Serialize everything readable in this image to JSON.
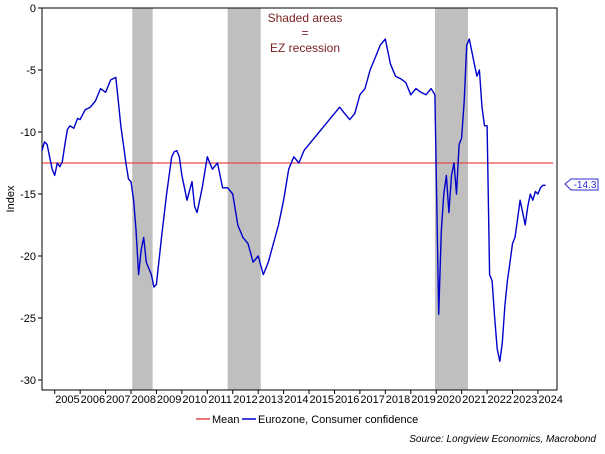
{
  "chart_data": {
    "type": "line",
    "title": "",
    "xlabel": "",
    "ylabel": "Index",
    "ylim": [
      -30,
      0
    ],
    "xlim": [
      2004.5,
      2024.75
    ],
    "yticks": [
      0,
      -5,
      -10,
      -15,
      -20,
      -25,
      -30
    ],
    "yticklabels": [
      "0",
      "-5",
      "-10",
      "-15",
      "-20",
      "-25",
      "-30"
    ],
    "xticks": [
      "2005",
      "2006",
      "2007",
      "2008",
      "2009",
      "2010",
      "2011",
      "2012",
      "2013",
      "2014",
      "2015",
      "2016",
      "2017",
      "2018",
      "2019",
      "2020",
      "2021",
      "2022",
      "2023",
      "2024"
    ],
    "annotation_lines": [
      "Shaded areas",
      "=",
      "EZ recession"
    ],
    "last_value_label": "-14.3",
    "source": "Source: Longview Economics, Macrobond",
    "colors": {
      "series": "#0000cc",
      "mean": "#e84a4a",
      "shade": "#bfbfbf",
      "annotation": "#7a1f1f"
    },
    "recessions": [
      {
        "start": 2008.05,
        "end": 2008.85
      },
      {
        "start": 2011.8,
        "end": 2013.1
      },
      {
        "start": 2019.95,
        "end": 2021.25
      }
    ],
    "legend": [
      {
        "name": "Mean",
        "color": "#e84a4a"
      },
      {
        "name": "Eurozone, Consumer confidence",
        "color": "#0000cc"
      }
    ],
    "series": [
      {
        "name": "Mean",
        "x": [
          2004.5,
          2024.6
        ],
        "values": [
          -12.5,
          -12.5
        ]
      },
      {
        "name": "Eurozone, Consumer confidence",
        "x": [
          2004.5,
          2004.6,
          2004.7,
          2004.8,
          2004.9,
          2005.0,
          2005.1,
          2005.2,
          2005.3,
          2005.4,
          2005.5,
          2005.6,
          2005.75,
          2005.9,
          2006.0,
          2006.2,
          2006.4,
          2006.6,
          2006.8,
          2007.0,
          2007.2,
          2007.4,
          2007.5,
          2007.6,
          2007.7,
          2007.8,
          2007.9,
          2008.0,
          2008.1,
          2008.2,
          2008.3,
          2008.4,
          2008.5,
          2008.6,
          2008.7,
          2008.8,
          2008.9,
          2009.0,
          2009.2,
          2009.4,
          2009.6,
          2009.7,
          2009.8,
          2009.9,
          2010.0,
          2010.2,
          2010.4,
          2010.5,
          2010.6,
          2010.8,
          2011.0,
          2011.2,
          2011.4,
          2011.6,
          2011.8,
          2012.0,
          2012.2,
          2012.4,
          2012.6,
          2012.8,
          2013.0,
          2013.2,
          2013.4,
          2013.6,
          2013.8,
          2014.0,
          2014.2,
          2014.4,
          2014.6,
          2014.8,
          2015.0,
          2015.2,
          2015.4,
          2015.6,
          2015.8,
          2016.0,
          2016.2,
          2016.4,
          2016.6,
          2016.8,
          2017.0,
          2017.2,
          2017.4,
          2017.6,
          2017.8,
          2018.0,
          2018.2,
          2018.4,
          2018.6,
          2018.8,
          2019.0,
          2019.2,
          2019.4,
          2019.6,
          2019.8,
          2019.95,
          2020.1,
          2020.2,
          2020.3,
          2020.4,
          2020.5,
          2020.6,
          2020.7,
          2020.8,
          2020.9,
          2021.0,
          2021.1,
          2021.2,
          2021.3,
          2021.4,
          2021.5,
          2021.6,
          2021.7,
          2021.8,
          2021.9,
          2022.0,
          2022.1,
          2022.2,
          2022.3,
          2022.4,
          2022.5,
          2022.6,
          2022.7,
          2022.8,
          2022.9,
          2023.0,
          2023.1,
          2023.2,
          2023.3,
          2023.4,
          2023.5,
          2023.6,
          2023.7,
          2023.8,
          2023.9,
          2024.0,
          2024.1,
          2024.2,
          2024.3
        ],
        "values": [
          -11.5,
          -10.8,
          -11.0,
          -12.0,
          -13.0,
          -13.5,
          -12.5,
          -12.8,
          -12.4,
          -11.0,
          -9.8,
          -9.5,
          -9.7,
          -8.9,
          -9.0,
          -8.2,
          -8.0,
          -7.5,
          -6.5,
          -6.8,
          -5.8,
          -5.6,
          -7.5,
          -9.5,
          -11.0,
          -12.5,
          -13.8,
          -14.0,
          -15.5,
          -18.0,
          -21.5,
          -19.5,
          -18.5,
          -20.5,
          -21.0,
          -21.5,
          -22.5,
          -22.3,
          -18.5,
          -15.0,
          -12.0,
          -11.6,
          -11.5,
          -12.0,
          -13.5,
          -15.5,
          -14.0,
          -16.0,
          -16.5,
          -14.5,
          -12.0,
          -13.0,
          -12.5,
          -14.5,
          -14.5,
          -15.0,
          -17.5,
          -18.5,
          -19.0,
          -20.5,
          -20.0,
          -21.5,
          -20.5,
          -19.0,
          -17.5,
          -15.5,
          -13.0,
          -12.0,
          -12.5,
          -11.5,
          -11.0,
          -10.5,
          -10.0,
          -9.5,
          -9.0,
          -8.5,
          -8.0,
          -8.5,
          -9.0,
          -8.5,
          -7.0,
          -6.5,
          -5.0,
          -4.0,
          -3.0,
          -2.5,
          -4.5,
          -5.5,
          -5.7,
          -6.0,
          -7.0,
          -6.5,
          -6.8,
          -7.0,
          -6.5,
          -7.0,
          -24.7,
          -18.0,
          -15.0,
          -13.5,
          -16.5,
          -13.5,
          -12.5,
          -15.0,
          -11.0,
          -10.5,
          -7.5,
          -3.0,
          -2.5,
          -3.5,
          -4.5,
          -5.5,
          -5.0,
          -8.0,
          -9.5,
          -9.5,
          -21.5,
          -22.0,
          -25.0,
          -27.5,
          -28.5,
          -27.0,
          -24.0,
          -22.0,
          -20.5,
          -19.0,
          -18.5,
          -17.0,
          -15.5,
          -16.5,
          -17.5,
          -16.0,
          -15.0,
          -15.5,
          -14.8,
          -15.0,
          -14.5,
          -14.3,
          -14.3
        ]
      }
    ]
  }
}
